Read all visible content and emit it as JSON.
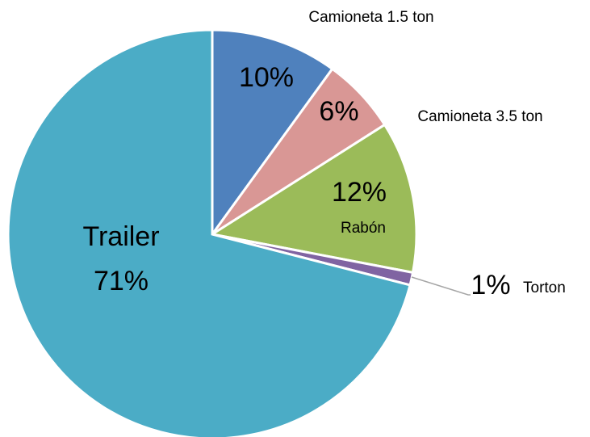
{
  "chart_data": {
    "type": "pie",
    "categories": [
      "Camioneta 1.5 ton",
      "Camioneta 3.5 ton",
      "Rabón",
      "Torton",
      "Trailer"
    ],
    "values": [
      10,
      6,
      12,
      1,
      71
    ],
    "value_labels": [
      "10%",
      "6%",
      "12%",
      "1%",
      "71%"
    ],
    "colors": [
      "#4f81bd",
      "#d99795",
      "#9bbb59",
      "#8064a2",
      "#4bacc6"
    ]
  }
}
